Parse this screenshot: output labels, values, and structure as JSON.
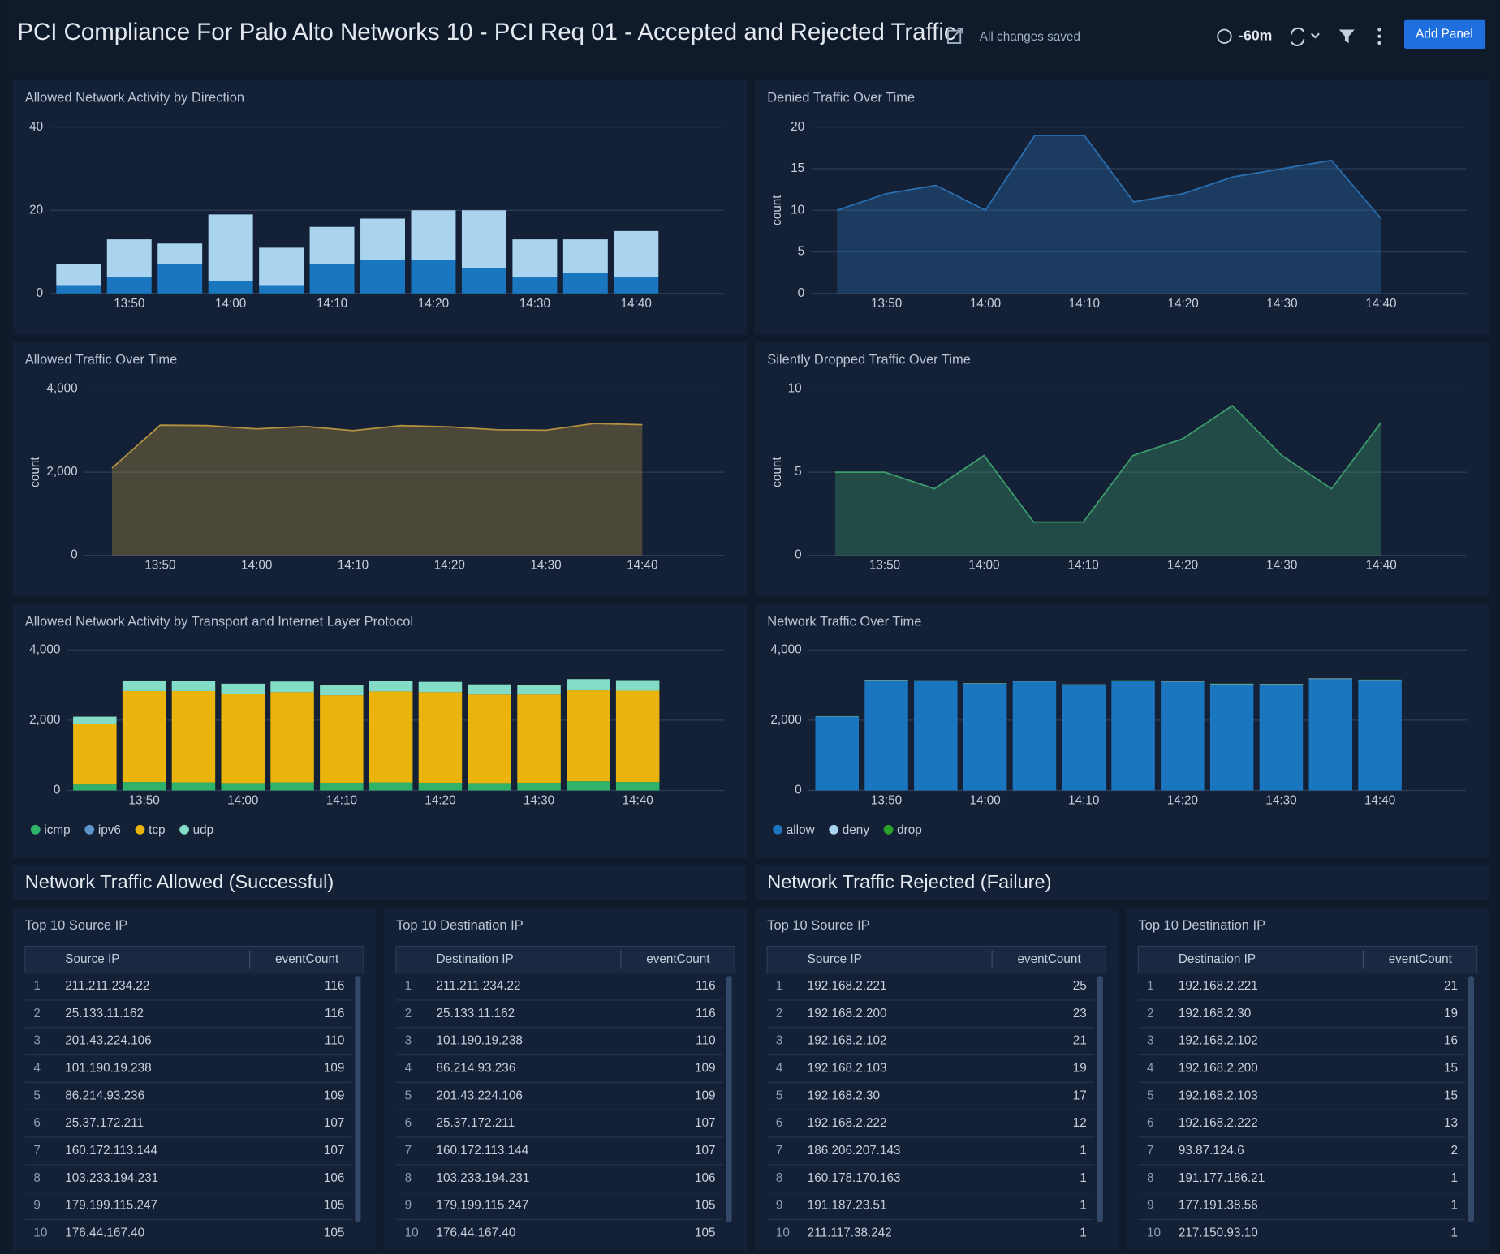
{
  "header": {
    "title": "PCI Compliance For Palo Alto Networks 10 - PCI Req 01 - Accepted and Rejected Traffic",
    "status": "All changes saved",
    "time_range": "-60m",
    "button": "Add Panel"
  },
  "chart_data": [
    {
      "type": "bar",
      "stacked": true,
      "title": "Allowed Network Activity by Direction",
      "categories": [
        null,
        "13:50",
        null,
        "14:00",
        null,
        "14:10",
        null,
        "14:20",
        null,
        "14:30",
        null,
        "14:40"
      ],
      "series": [
        {
          "color": "#1b76c0",
          "values": [
            2,
            4,
            7,
            3,
            2,
            7,
            8,
            8,
            6,
            4,
            5,
            4
          ]
        },
        {
          "color": "#a9d3ef",
          "values": [
            5,
            9,
            5,
            16,
            9,
            9,
            10,
            12,
            14,
            9,
            8,
            11
          ]
        }
      ],
      "ylim": [
        0,
        40
      ],
      "yticks": [
        0,
        20,
        40
      ],
      "grid": true
    },
    {
      "type": "area",
      "title": "Denied Traffic Over Time",
      "ylabel": "count",
      "categories": [
        null,
        "13:50",
        null,
        "14:00",
        null,
        "14:10",
        null,
        "14:20",
        null,
        "14:30",
        null,
        "14:40"
      ],
      "series": [
        {
          "color": "#2a6fb0",
          "values": [
            10,
            12,
            13,
            10,
            19,
            19,
            11,
            12,
            14,
            15,
            16,
            9
          ]
        }
      ],
      "ylim": [
        0,
        20
      ],
      "yticks": [
        0,
        5,
        10,
        15,
        20
      ],
      "grid": true
    },
    {
      "type": "area",
      "title": "Allowed Traffic Over Time",
      "ylabel": "count",
      "categories": [
        null,
        "13:50",
        null,
        "14:00",
        null,
        "14:10",
        null,
        "14:20",
        null,
        "14:30",
        null,
        "14:40"
      ],
      "series": [
        {
          "color": "#b39240",
          "values": [
            2100,
            3130,
            3120,
            3040,
            3100,
            3000,
            3120,
            3090,
            3020,
            3010,
            3170,
            3140
          ]
        }
      ],
      "ylim": [
        0,
        4000
      ],
      "yticks": [
        0,
        {
          "value": 2000,
          "label": "2,000"
        },
        {
          "value": 4000,
          "label": "4,000"
        }
      ],
      "grid": true
    },
    {
      "type": "area",
      "title": "Silently Dropped Traffic Over Time",
      "ylabel": "count",
      "categories": [
        null,
        "13:50",
        null,
        "14:00",
        null,
        "14:10",
        null,
        "14:20",
        null,
        "14:30",
        null,
        "14:40"
      ],
      "series": [
        {
          "color": "#3d9d6b",
          "values": [
            5,
            5,
            4,
            6,
            2,
            2,
            6,
            7,
            9,
            6,
            4,
            8
          ]
        }
      ],
      "ylim": [
        0,
        10
      ],
      "yticks": [
        0,
        5,
        10
      ],
      "grid": true
    },
    {
      "type": "bar",
      "stacked": true,
      "title": "Allowed Network Activity by Transport and Internet Layer Protocol",
      "categories": [
        null,
        "13:50",
        null,
        "14:00",
        null,
        "14:10",
        null,
        "14:20",
        null,
        "14:30",
        null,
        "14:40"
      ],
      "series": [
        {
          "name": "icmp",
          "color": "#2fb36a",
          "values": [
            170,
            240,
            230,
            210,
            230,
            220,
            230,
            220,
            210,
            220,
            260,
            240
          ]
        },
        {
          "name": "ipv6",
          "color": "#5c95cc",
          "values": [
            0,
            0,
            0,
            0,
            0,
            0,
            0,
            0,
            0,
            0,
            0,
            0
          ]
        },
        {
          "name": "tcp",
          "color": "#ebb40c",
          "values": [
            1730,
            2590,
            2600,
            2540,
            2570,
            2490,
            2590,
            2580,
            2520,
            2510,
            2590,
            2600
          ]
        },
        {
          "name": "udp",
          "color": "#82dcc6",
          "values": [
            200,
            300,
            290,
            290,
            300,
            290,
            300,
            290,
            290,
            280,
            320,
            300
          ]
        }
      ],
      "ylim": [
        0,
        4000
      ],
      "yticks": [
        0,
        {
          "value": 2000,
          "label": "2,000"
        },
        {
          "value": 4000,
          "label": "4,000"
        }
      ],
      "grid": true,
      "legend": "bottom-left"
    },
    {
      "type": "bar",
      "stacked": true,
      "title": "Network Traffic Over Time",
      "categories": [
        null,
        "13:50",
        null,
        "14:00",
        null,
        "14:10",
        null,
        "14:20",
        null,
        "14:30",
        null,
        "14:40"
      ],
      "series": [
        {
          "name": "allow",
          "color": "#1b76c0",
          "values": [
            2100,
            3130,
            3120,
            3040,
            3100,
            3000,
            3120,
            3090,
            3020,
            3010,
            3170,
            3140
          ]
        },
        {
          "name": "deny",
          "color": "#a9d3ef",
          "values": [
            10,
            12,
            13,
            10,
            19,
            19,
            11,
            12,
            14,
            15,
            16,
            9
          ]
        },
        {
          "name": "drop",
          "color": "#2ca02c",
          "values": [
            5,
            5,
            4,
            6,
            2,
            2,
            6,
            7,
            9,
            6,
            4,
            8
          ]
        }
      ],
      "ylim": [
        0,
        4000
      ],
      "yticks": [
        0,
        {
          "value": 2000,
          "label": "2,000"
        },
        {
          "value": 4000,
          "label": "4,000"
        }
      ],
      "grid": true,
      "legend": "bottom-left"
    }
  ],
  "sections": [
    "Network Traffic Allowed (Successful)",
    "Network Traffic Rejected (Failure)"
  ],
  "tables": [
    {
      "title": "Top 10 Source IP",
      "columns": [
        "Source IP",
        "eventCount"
      ],
      "rows": [
        [
          1,
          "211.211.234.22",
          116
        ],
        [
          2,
          "25.133.11.162",
          116
        ],
        [
          3,
          "201.43.224.106",
          110
        ],
        [
          4,
          "101.190.19.238",
          109
        ],
        [
          5,
          "86.214.93.236",
          109
        ],
        [
          6,
          "25.37.172.211",
          107
        ],
        [
          7,
          "160.172.113.144",
          107
        ],
        [
          8,
          "103.233.194.231",
          106
        ],
        [
          9,
          "179.199.115.247",
          105
        ],
        [
          10,
          "176.44.167.40",
          105
        ]
      ]
    },
    {
      "title": "Top 10 Destination IP",
      "columns": [
        "Destination IP",
        "eventCount"
      ],
      "rows": [
        [
          1,
          "211.211.234.22",
          116
        ],
        [
          2,
          "25.133.11.162",
          116
        ],
        [
          3,
          "101.190.19.238",
          110
        ],
        [
          4,
          "86.214.93.236",
          109
        ],
        [
          5,
          "201.43.224.106",
          109
        ],
        [
          6,
          "25.37.172.211",
          107
        ],
        [
          7,
          "160.172.113.144",
          107
        ],
        [
          8,
          "103.233.194.231",
          106
        ],
        [
          9,
          "179.199.115.247",
          105
        ],
        [
          10,
          "176.44.167.40",
          105
        ]
      ]
    },
    {
      "title": "Top 10 Source IP",
      "columns": [
        "Source IP",
        "eventCount"
      ],
      "rows": [
        [
          1,
          "192.168.2.221",
          25
        ],
        [
          2,
          "192.168.2.200",
          23
        ],
        [
          3,
          "192.168.2.102",
          21
        ],
        [
          4,
          "192.168.2.103",
          19
        ],
        [
          5,
          "192.168.2.30",
          17
        ],
        [
          6,
          "192.168.2.222",
          12
        ],
        [
          7,
          "186.206.207.143",
          1
        ],
        [
          8,
          "160.178.170.163",
          1
        ],
        [
          9,
          "191.187.23.51",
          1
        ],
        [
          10,
          "211.117.38.242",
          1
        ]
      ]
    },
    {
      "title": "Top 10 Destination IP",
      "columns": [
        "Destination IP",
        "eventCount"
      ],
      "rows": [
        [
          1,
          "192.168.2.221",
          21
        ],
        [
          2,
          "192.168.2.30",
          19
        ],
        [
          3,
          "192.168.2.102",
          16
        ],
        [
          4,
          "192.168.2.200",
          15
        ],
        [
          5,
          "192.168.2.103",
          15
        ],
        [
          6,
          "192.168.2.222",
          13
        ],
        [
          7,
          "93.87.124.6",
          2
        ],
        [
          8,
          "191.177.186.21",
          1
        ],
        [
          9,
          "177.191.38.56",
          1
        ],
        [
          10,
          "217.150.93.10",
          1
        ]
      ]
    }
  ]
}
